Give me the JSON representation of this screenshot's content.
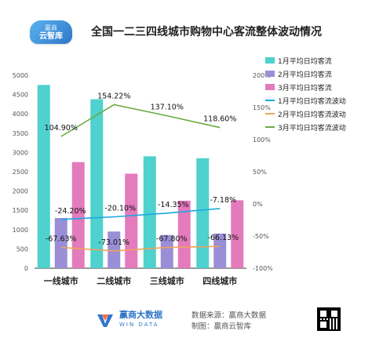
{
  "brand_badge": {
    "line1": "赢商",
    "line2": "云智库"
  },
  "chart_data": {
    "type": "bar",
    "title": "全国一二三四线城市购物中心客流整体波动情况",
    "categories": [
      "一线城市",
      "二线城市",
      "三线城市",
      "四线城市"
    ],
    "y_left": {
      "min": 0,
      "max": 5000,
      "step": 500
    },
    "y_right": {
      "min": -100,
      "max": 200,
      "step": 50,
      "unit": "%"
    },
    "bar_series": [
      {
        "name": "1月平均日均客流",
        "color": "#4fd1cd",
        "values": [
          4750,
          4380,
          2900,
          2850
        ]
      },
      {
        "name": "2月平均日均客流",
        "color": "#9a8fd6",
        "values": [
          1300,
          950,
          860,
          900
        ]
      },
      {
        "name": "3月平均日均客流",
        "color": "#e37bbd",
        "values": [
          2750,
          2450,
          1750,
          1760
        ]
      }
    ],
    "line_series": [
      {
        "name": "1月平均日均客流波动",
        "color": "#1aa9e0",
        "values": [
          -24.2,
          -20.1,
          -14.35,
          -7.18
        ],
        "labels": [
          "-24.20%",
          "-20.10%",
          "-14.35%",
          "-7.18%"
        ]
      },
      {
        "name": "2月平均日均客流波动",
        "color": "#f0a25a",
        "values": [
          -67.63,
          -73.01,
          -67.8,
          -66.13
        ],
        "labels": [
          "-67.63%",
          "-73.01%",
          "-67.80%",
          "-66.13%"
        ]
      },
      {
        "name": "3月平均日均客流波动",
        "color": "#6aab3f",
        "values": [
          104.9,
          154.22,
          137.1,
          118.6
        ],
        "labels": [
          "104.90%",
          "154.22%",
          "137.10%",
          "118.60%"
        ]
      }
    ],
    "legend_position": "right",
    "grid": false
  },
  "footer": {
    "brand_cn": "赢商大数据",
    "brand_en": "WIN DATA",
    "source_line1": "数据来源：赢商大数据",
    "source_line2": "制图：赢商云智库"
  }
}
